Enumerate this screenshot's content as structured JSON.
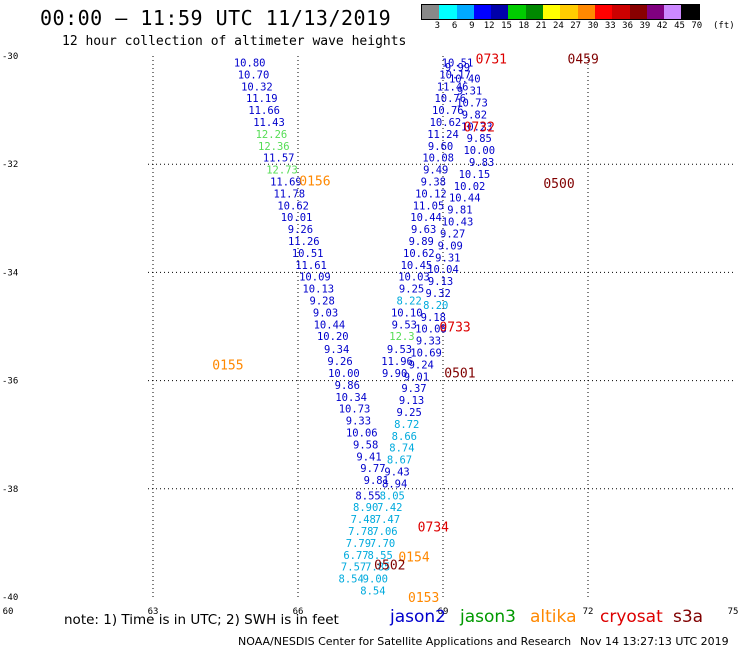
{
  "header": {
    "title": "00:00 – 11:59 UTC 11/13/2019",
    "subtitle": "12 hour collection of altimeter wave heights"
  },
  "legend": {
    "colors": [
      "#888888",
      "#00ffff",
      "#00aaff",
      "#0000ff",
      "#0000aa",
      "#00cc00",
      "#008800",
      "#ffff00",
      "#ffcc00",
      "#ff8800",
      "#ff0000",
      "#cc0000",
      "#880000",
      "#800080",
      "#cc88ff",
      "#000000"
    ],
    "labels": [
      "3",
      "6",
      "9",
      "12",
      "15",
      "18",
      "21",
      "24",
      "27",
      "30",
      "33",
      "36",
      "39",
      "42",
      "45",
      "70"
    ],
    "unit": "(ft)"
  },
  "footer": {
    "note": "note: 1) Time is in UTC; 2) SWH is in feet",
    "satellites": [
      {
        "name": "jason2",
        "color": "#0000cc"
      },
      {
        "name": "jason3",
        "color": "#009900"
      },
      {
        "name": "altika",
        "color": "#ff8800"
      },
      {
        "name": "cryosat",
        "color": "#dd0000"
      },
      {
        "name": "s3a",
        "color": "#800000"
      }
    ],
    "credit": "NOAA/NESDIS Center for Satellite Applications and Research",
    "timestamp": "Nov 14 13:27:13 UTC 2019"
  },
  "chart_data": {
    "type": "scatter",
    "xlim": [
      60,
      75
    ],
    "ylim": [
      -40,
      -30
    ],
    "x_ticks": [
      "60",
      "63",
      "66",
      "69",
      "72",
      "75"
    ],
    "y_ticks": [
      "-30",
      "-32",
      "-34",
      "-36",
      "-38",
      "-40"
    ],
    "grid": true,
    "track_times": [
      {
        "label": "0731",
        "x": 70.0,
        "y": -30.05,
        "color": "#dd0000"
      },
      {
        "label": "0459",
        "x": 71.9,
        "y": -30.05,
        "color": "#800000"
      },
      {
        "label": "0732",
        "x": 69.75,
        "y": -31.3,
        "color": "#dd0000"
      },
      {
        "label": "0500",
        "x": 71.4,
        "y": -32.35,
        "color": "#800000"
      },
      {
        "label": "0156",
        "x": 66.35,
        "y": -32.3,
        "color": "#ff8800"
      },
      {
        "label": "0733",
        "x": 69.25,
        "y": -35.0,
        "color": "#dd0000"
      },
      {
        "label": "0155",
        "x": 64.55,
        "y": -35.7,
        "color": "#ff8800"
      },
      {
        "label": "0501",
        "x": 69.35,
        "y": -35.85,
        "color": "#800000"
      },
      {
        "label": "0734",
        "x": 68.8,
        "y": -38.7,
        "color": "#dd0000"
      },
      {
        "label": "0154",
        "x": 68.4,
        "y": -39.25,
        "color": "#ff8800"
      },
      {
        "label": "0502",
        "x": 67.9,
        "y": -39.4,
        "color": "#800000"
      },
      {
        "label": "0153",
        "x": 68.6,
        "y": -40.0,
        "color": "#ff8800"
      }
    ],
    "series": [
      {
        "satellite": "jason2",
        "points": [
          {
            "x": 65.0,
            "y": -30.12,
            "v": "10.80",
            "c": "#0000cc"
          },
          {
            "x": 65.08,
            "y": -30.34,
            "v": "10.70",
            "c": "#0000cc"
          },
          {
            "x": 65.15,
            "y": -30.56,
            "v": "10.32",
            "c": "#0000cc"
          },
          {
            "x": 65.25,
            "y": -30.78,
            "v": "11.19",
            "c": "#0000cc"
          },
          {
            "x": 65.3,
            "y": -31.0,
            "v": "11.66",
            "c": "#0000cc"
          },
          {
            "x": 65.4,
            "y": -31.22,
            "v": "11.43",
            "c": "#0000cc"
          },
          {
            "x": 65.45,
            "y": -31.44,
            "v": "12.26",
            "c": "#55dd55"
          },
          {
            "x": 65.5,
            "y": -31.66,
            "v": "12.36",
            "c": "#55dd55"
          },
          {
            "x": 65.6,
            "y": -31.88,
            "v": "11.57",
            "c": "#0000cc"
          },
          {
            "x": 65.67,
            "y": -32.1,
            "v": "12.73",
            "c": "#55dd55"
          },
          {
            "x": 65.75,
            "y": -32.32,
            "v": "11.69",
            "c": "#0000cc"
          },
          {
            "x": 65.82,
            "y": -32.54,
            "v": "11.78",
            "c": "#0000cc"
          },
          {
            "x": 65.9,
            "y": -32.76,
            "v": "10.62",
            "c": "#0000cc"
          },
          {
            "x": 65.97,
            "y": -32.98,
            "v": "10.01",
            "c": "#0000cc"
          },
          {
            "x": 66.05,
            "y": -33.2,
            "v": "9.26",
            "c": "#0000cc"
          },
          {
            "x": 66.12,
            "y": -33.42,
            "v": "11.26",
            "c": "#0000cc"
          },
          {
            "x": 66.2,
            "y": -33.64,
            "v": "10.51",
            "c": "#0000cc"
          },
          {
            "x": 66.27,
            "y": -33.86,
            "v": "11.61",
            "c": "#0000cc"
          },
          {
            "x": 66.35,
            "y": -34.08,
            "v": "10.09",
            "c": "#0000cc"
          },
          {
            "x": 66.42,
            "y": -34.3,
            "v": "10.13",
            "c": "#0000cc"
          },
          {
            "x": 66.5,
            "y": -34.52,
            "v": "9.28",
            "c": "#0000cc"
          },
          {
            "x": 66.57,
            "y": -34.74,
            "v": "9.03",
            "c": "#0000cc"
          },
          {
            "x": 66.65,
            "y": -34.96,
            "v": "10.44",
            "c": "#0000cc"
          },
          {
            "x": 66.72,
            "y": -35.18,
            "v": "10.20",
            "c": "#0000cc"
          },
          {
            "x": 66.8,
            "y": -35.42,
            "v": "9.34",
            "c": "#0000cc"
          },
          {
            "x": 66.87,
            "y": -35.64,
            "v": "9.26",
            "c": "#0000cc"
          },
          {
            "x": 66.95,
            "y": -35.86,
            "v": "10.00",
            "c": "#0000cc"
          },
          {
            "x": 67.02,
            "y": -36.08,
            "v": "9.86",
            "c": "#0000cc"
          },
          {
            "x": 67.1,
            "y": -36.3,
            "v": "10.34",
            "c": "#0000cc"
          },
          {
            "x": 67.17,
            "y": -36.52,
            "v": "10.73",
            "c": "#0000cc"
          },
          {
            "x": 67.25,
            "y": -36.74,
            "v": "9.33",
            "c": "#0000cc"
          },
          {
            "x": 67.32,
            "y": -36.96,
            "v": "10.06",
            "c": "#0000cc"
          },
          {
            "x": 67.4,
            "y": -37.18,
            "v": "9.58",
            "c": "#0000cc"
          },
          {
            "x": 67.47,
            "y": -37.4,
            "v": "9.41",
            "c": "#0000cc"
          },
          {
            "x": 67.55,
            "y": -37.62,
            "v": "9.77",
            "c": "#0000cc"
          },
          {
            "x": 67.62,
            "y": -37.84,
            "v": "9.81",
            "c": "#0000cc"
          },
          {
            "x": 69.3,
            "y": -30.12,
            "v": "10.51",
            "c": "#0000cc"
          },
          {
            "x": 69.25,
            "y": -30.34,
            "v": "10.17",
            "c": "#0000cc"
          },
          {
            "x": 69.2,
            "y": -30.56,
            "v": "11.46",
            "c": "#0000cc"
          },
          {
            "x": 69.15,
            "y": -30.78,
            "v": "10.76",
            "c": "#0000cc"
          },
          {
            "x": 69.1,
            "y": -31.0,
            "v": "10.76",
            "c": "#0000cc"
          },
          {
            "x": 69.05,
            "y": -31.22,
            "v": "10.62",
            "c": "#0000cc"
          },
          {
            "x": 69.0,
            "y": -31.44,
            "v": "11.24",
            "c": "#0000cc"
          },
          {
            "x": 68.95,
            "y": -31.66,
            "v": "9.60",
            "c": "#0000cc"
          },
          {
            "x": 68.9,
            "y": -31.88,
            "v": "10.08",
            "c": "#0000cc"
          },
          {
            "x": 68.85,
            "y": -32.1,
            "v": "9.49",
            "c": "#0000cc"
          },
          {
            "x": 68.8,
            "y": -32.32,
            "v": "9.38",
            "c": "#0000cc"
          },
          {
            "x": 68.75,
            "y": -32.54,
            "v": "10.12",
            "c": "#0000cc"
          },
          {
            "x": 68.7,
            "y": -32.76,
            "v": "11.05",
            "c": "#0000cc"
          },
          {
            "x": 68.65,
            "y": -32.98,
            "v": "10.44",
            "c": "#0000cc"
          },
          {
            "x": 68.6,
            "y": -33.2,
            "v": "9.63",
            "c": "#0000cc"
          },
          {
            "x": 68.55,
            "y": -33.42,
            "v": "9.89",
            "c": "#0000cc"
          },
          {
            "x": 68.5,
            "y": -33.64,
            "v": "10.62",
            "c": "#0000cc"
          },
          {
            "x": 68.45,
            "y": -33.86,
            "v": "10.45",
            "c": "#0000cc"
          },
          {
            "x": 68.4,
            "y": -34.08,
            "v": "10.03",
            "c": "#0000cc"
          },
          {
            "x": 68.35,
            "y": -34.3,
            "v": "9.25",
            "c": "#0000cc"
          },
          {
            "x": 68.3,
            "y": -34.52,
            "v": "8.22",
            "c": "#00aadd"
          },
          {
            "x": 68.25,
            "y": -34.74,
            "v": "10.10",
            "c": "#0000cc"
          },
          {
            "x": 68.2,
            "y": -34.96,
            "v": "9.53",
            "c": "#0000cc"
          },
          {
            "x": 68.15,
            "y": -35.18,
            "v": "12.3",
            "c": "#55dd55"
          },
          {
            "x": 68.1,
            "y": -35.42,
            "v": "9.53",
            "c": "#0000cc"
          },
          {
            "x": 68.05,
            "y": -35.64,
            "v": "11.96",
            "c": "#0000cc"
          },
          {
            "x": 68.0,
            "y": -35.86,
            "v": "9.90",
            "c": "#0000cc"
          },
          {
            "x": 69.3,
            "y": -30.2,
            "v": "9.99",
            "c": "#0000cc"
          },
          {
            "x": 69.45,
            "y": -30.42,
            "v": "10.40",
            "c": "#0000cc"
          },
          {
            "x": 69.55,
            "y": -30.64,
            "v": "9.31",
            "c": "#0000cc"
          },
          {
            "x": 69.6,
            "y": -30.86,
            "v": "10.73",
            "c": "#0000cc"
          },
          {
            "x": 69.65,
            "y": -31.08,
            "v": "9.82",
            "c": "#0000cc"
          },
          {
            "x": 69.7,
            "y": -31.3,
            "v": "10.23",
            "c": "#0000cc"
          },
          {
            "x": 69.75,
            "y": -31.52,
            "v": "9.85",
            "c": "#0000cc"
          },
          {
            "x": 69.75,
            "y": -31.74,
            "v": "10.00",
            "c": "#0000cc"
          },
          {
            "x": 69.8,
            "y": -31.96,
            "v": "9.83",
            "c": "#0000cc"
          },
          {
            "x": 69.65,
            "y": -32.18,
            "v": "10.15",
            "c": "#0000cc"
          },
          {
            "x": 69.55,
            "y": -32.4,
            "v": "10.02",
            "c": "#0000cc"
          },
          {
            "x": 69.45,
            "y": -32.62,
            "v": "10.44",
            "c": "#0000cc"
          },
          {
            "x": 69.35,
            "y": -32.84,
            "v": "9.81",
            "c": "#0000cc"
          },
          {
            "x": 69.3,
            "y": -33.06,
            "v": "10.43",
            "c": "#0000cc"
          },
          {
            "x": 69.2,
            "y": -33.28,
            "v": "9.27",
            "c": "#0000cc"
          },
          {
            "x": 69.15,
            "y": -33.5,
            "v": "9.09",
            "c": "#0000cc"
          },
          {
            "x": 69.1,
            "y": -33.72,
            "v": "9.31",
            "c": "#0000cc"
          },
          {
            "x": 69.0,
            "y": -33.94,
            "v": "10.04",
            "c": "#0000cc"
          },
          {
            "x": 68.95,
            "y": -34.16,
            "v": "9.13",
            "c": "#0000cc"
          },
          {
            "x": 68.9,
            "y": -34.38,
            "v": "9.32",
            "c": "#0000cc"
          },
          {
            "x": 68.85,
            "y": -34.6,
            "v": "8.20",
            "c": "#00aadd"
          },
          {
            "x": 68.8,
            "y": -34.82,
            "v": "9.18",
            "c": "#0000cc"
          },
          {
            "x": 68.75,
            "y": -35.04,
            "v": "10.08",
            "c": "#0000cc"
          },
          {
            "x": 68.7,
            "y": -35.26,
            "v": "9.33",
            "c": "#0000cc"
          },
          {
            "x": 68.65,
            "y": -35.48,
            "v": "10.69",
            "c": "#0000cc"
          },
          {
            "x": 68.55,
            "y": -35.7,
            "v": "9.24",
            "c": "#0000cc"
          },
          {
            "x": 68.45,
            "y": -35.92,
            "v": "9.01",
            "c": "#0000cc"
          },
          {
            "x": 68.4,
            "y": -36.14,
            "v": "9.37",
            "c": "#0000cc"
          },
          {
            "x": 68.35,
            "y": -36.36,
            "v": "9.13",
            "c": "#0000cc"
          },
          {
            "x": 68.3,
            "y": -36.58,
            "v": "9.25",
            "c": "#0000cc"
          },
          {
            "x": 68.25,
            "y": -36.8,
            "v": "8.72",
            "c": "#00aadd"
          },
          {
            "x": 68.2,
            "y": -37.02,
            "v": "8.66",
            "c": "#00aadd"
          },
          {
            "x": 68.15,
            "y": -37.24,
            "v": "8.74",
            "c": "#00aadd"
          },
          {
            "x": 68.1,
            "y": -37.46,
            "v": "8.67",
            "c": "#00aadd"
          },
          {
            "x": 68.05,
            "y": -37.68,
            "v": "9.43",
            "c": "#0000cc"
          },
          {
            "x": 68.0,
            "y": -37.9,
            "v": "8.94",
            "c": "#0000cc"
          },
          {
            "x": 67.95,
            "y": -38.12,
            "v": "8.05",
            "c": "#00aadd"
          },
          {
            "x": 67.9,
            "y": -38.34,
            "v": "7.42",
            "c": "#00aadd"
          },
          {
            "x": 67.85,
            "y": -38.56,
            "v": "7.47",
            "c": "#00aadd"
          },
          {
            "x": 67.8,
            "y": -38.78,
            "v": "7.06",
            "c": "#00aadd"
          },
          {
            "x": 67.75,
            "y": -39.0,
            "v": "7.70",
            "c": "#00aadd"
          },
          {
            "x": 67.7,
            "y": -39.22,
            "v": "8.55",
            "c": "#00aadd"
          },
          {
            "x": 67.65,
            "y": -39.44,
            "v": "7.85",
            "c": "#00aadd"
          },
          {
            "x": 67.6,
            "y": -39.66,
            "v": "9.00",
            "c": "#00aadd"
          },
          {
            "x": 67.55,
            "y": -39.88,
            "v": "8.54",
            "c": "#00aadd"
          }
        ]
      },
      {
        "satellite": "altika",
        "points": [
          {
            "x": 67.45,
            "y": -38.12,
            "v": "8.55",
            "c": "#0000cc"
          },
          {
            "x": 67.4,
            "y": -38.34,
            "v": "8.90",
            "c": "#00aadd"
          },
          {
            "x": 67.35,
            "y": -38.56,
            "v": "7.48",
            "c": "#00aadd"
          },
          {
            "x": 67.3,
            "y": -38.78,
            "v": "7.78",
            "c": "#00aadd"
          },
          {
            "x": 67.25,
            "y": -39.0,
            "v": "7.79",
            "c": "#00aadd"
          },
          {
            "x": 67.2,
            "y": -39.22,
            "v": "6.77",
            "c": "#00aadd"
          },
          {
            "x": 67.15,
            "y": -39.44,
            "v": "7.57",
            "c": "#00aadd"
          },
          {
            "x": 67.1,
            "y": -39.66,
            "v": "8.54",
            "c": "#00aadd"
          }
        ]
      }
    ]
  }
}
